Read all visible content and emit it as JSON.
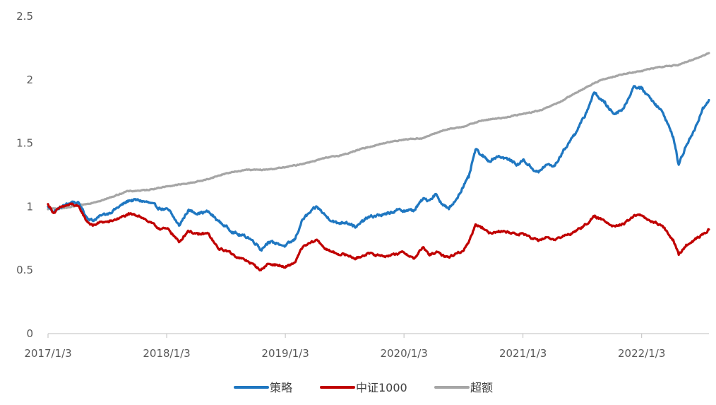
{
  "chart_data": {
    "type": "line",
    "x_ticks": [
      "2017/1/3",
      "2018/1/3",
      "2019/1/3",
      "2020/1/3",
      "2021/1/3",
      "2022/1/3"
    ],
    "y_ticks": [
      "0",
      "0.5",
      "1",
      "1.5",
      "2",
      "2.5"
    ],
    "ylim": [
      0,
      2.5
    ],
    "xlim": [
      "2017/1/3",
      "2022/7/29"
    ],
    "grid": false,
    "legend_position": "bottom",
    "series": [
      {
        "name": "策略",
        "color": "#1F77C1",
        "points": [
          [
            "2017/1/3",
            1.0
          ],
          [
            "2017/1/20",
            0.96
          ],
          [
            "2017/2/15",
            1.0
          ],
          [
            "2017/3/20",
            1.04
          ],
          [
            "2017/4/10",
            1.02
          ],
          [
            "2017/5/1",
            0.92
          ],
          [
            "2017/5/20",
            0.89
          ],
          [
            "2017/6/15",
            0.93
          ],
          [
            "2017/7/10",
            0.95
          ],
          [
            "2017/8/10",
            1.0
          ],
          [
            "2017/9/10",
            1.05
          ],
          [
            "2017/10/10",
            1.05
          ],
          [
            "2017/11/10",
            1.03
          ],
          [
            "2017/12/10",
            0.99
          ],
          [
            "2018/1/10",
            0.97
          ],
          [
            "2018/2/10",
            0.85
          ],
          [
            "2018/3/10",
            0.97
          ],
          [
            "2018/4/10",
            0.95
          ],
          [
            "2018/5/10",
            0.96
          ],
          [
            "2018/6/10",
            0.89
          ],
          [
            "2018/7/10",
            0.83
          ],
          [
            "2018/8/10",
            0.78
          ],
          [
            "2018/9/10",
            0.76
          ],
          [
            "2018/10/10",
            0.7
          ],
          [
            "2018/10/20",
            0.66
          ],
          [
            "2018/11/10",
            0.72
          ],
          [
            "2018/12/10",
            0.71
          ],
          [
            "2019/1/3",
            0.69
          ],
          [
            "2019/2/1",
            0.74
          ],
          [
            "2019/2/25",
            0.9
          ],
          [
            "2019/4/10",
            1.0
          ],
          [
            "2019/5/10",
            0.92
          ],
          [
            "2019/6/10",
            0.87
          ],
          [
            "2019/7/10",
            0.88
          ],
          [
            "2019/8/10",
            0.84
          ],
          [
            "2019/9/10",
            0.91
          ],
          [
            "2019/10/10",
            0.93
          ],
          [
            "2019/11/10",
            0.94
          ],
          [
            "2019/12/10",
            0.97
          ],
          [
            "2020/1/3",
            0.97
          ],
          [
            "2020/2/3",
            0.97
          ],
          [
            "2020/3/1",
            1.06
          ],
          [
            "2020/3/20",
            1.05
          ],
          [
            "2020/4/10",
            1.1
          ],
          [
            "2020/4/30",
            1.02
          ],
          [
            "2020/5/20",
            0.98
          ],
          [
            "2020/6/10",
            1.05
          ],
          [
            "2020/7/1",
            1.15
          ],
          [
            "2020/7/20",
            1.23
          ],
          [
            "2020/8/10",
            1.45
          ],
          [
            "2020/8/30",
            1.4
          ],
          [
            "2020/9/20",
            1.36
          ],
          [
            "2020/10/20",
            1.4
          ],
          [
            "2020/11/20",
            1.37
          ],
          [
            "2020/12/20",
            1.33
          ],
          [
            "2021/1/3",
            1.37
          ],
          [
            "2021/2/1",
            1.3
          ],
          [
            "2021/2/20",
            1.27
          ],
          [
            "2021/3/15",
            1.33
          ],
          [
            "2021/4/10",
            1.32
          ],
          [
            "2021/5/10",
            1.45
          ],
          [
            "2021/6/10",
            1.57
          ],
          [
            "2021/7/10",
            1.7
          ],
          [
            "2021/8/10",
            1.9
          ],
          [
            "2021/9/10",
            1.82
          ],
          [
            "2021/10/10",
            1.73
          ],
          [
            "2021/11/10",
            1.78
          ],
          [
            "2021/12/10",
            1.95
          ],
          [
            "2022/1/3",
            1.93
          ],
          [
            "2022/2/1",
            1.85
          ],
          [
            "2022/3/1",
            1.77
          ],
          [
            "2022/3/20",
            1.68
          ],
          [
            "2022/4/10",
            1.55
          ],
          [
            "2022/4/27",
            1.33
          ],
          [
            "2022/5/20",
            1.48
          ],
          [
            "2022/6/15",
            1.6
          ],
          [
            "2022/7/10",
            1.78
          ],
          [
            "2022/7/29",
            1.84
          ]
        ]
      },
      {
        "name": "中证1000",
        "color": "#C00000",
        "points": [
          [
            "2017/1/3",
            1.02
          ],
          [
            "2017/1/20",
            0.95
          ],
          [
            "2017/2/15",
            1.0
          ],
          [
            "2017/3/20",
            1.02
          ],
          [
            "2017/4/10",
            0.99
          ],
          [
            "2017/5/1",
            0.89
          ],
          [
            "2017/5/20",
            0.85
          ],
          [
            "2017/6/15",
            0.88
          ],
          [
            "2017/7/10",
            0.88
          ],
          [
            "2017/8/10",
            0.91
          ],
          [
            "2017/9/10",
            0.94
          ],
          [
            "2017/10/10",
            0.93
          ],
          [
            "2017/11/10",
            0.88
          ],
          [
            "2017/12/10",
            0.83
          ],
          [
            "2018/1/10",
            0.82
          ],
          [
            "2018/2/10",
            0.72
          ],
          [
            "2018/3/10",
            0.81
          ],
          [
            "2018/4/10",
            0.78
          ],
          [
            "2018/5/10",
            0.79
          ],
          [
            "2018/6/10",
            0.67
          ],
          [
            "2018/7/10",
            0.65
          ],
          [
            "2018/8/10",
            0.6
          ],
          [
            "2018/9/10",
            0.57
          ],
          [
            "2018/10/10",
            0.52
          ],
          [
            "2018/10/20",
            0.5
          ],
          [
            "2018/11/10",
            0.55
          ],
          [
            "2018/12/10",
            0.54
          ],
          [
            "2019/1/3",
            0.52
          ],
          [
            "2019/2/1",
            0.56
          ],
          [
            "2019/2/25",
            0.68
          ],
          [
            "2019/4/10",
            0.74
          ],
          [
            "2019/5/10",
            0.66
          ],
          [
            "2019/6/10",
            0.63
          ],
          [
            "2019/7/10",
            0.62
          ],
          [
            "2019/8/10",
            0.59
          ],
          [
            "2019/9/10",
            0.63
          ],
          [
            "2019/10/10",
            0.62
          ],
          [
            "2019/11/10",
            0.61
          ],
          [
            "2019/12/10",
            0.63
          ],
          [
            "2020/1/3",
            0.64
          ],
          [
            "2020/2/3",
            0.59
          ],
          [
            "2020/3/1",
            0.68
          ],
          [
            "2020/3/20",
            0.62
          ],
          [
            "2020/4/10",
            0.64
          ],
          [
            "2020/4/30",
            0.62
          ],
          [
            "2020/5/20",
            0.6
          ],
          [
            "2020/6/10",
            0.63
          ],
          [
            "2020/7/1",
            0.65
          ],
          [
            "2020/7/20",
            0.72
          ],
          [
            "2020/8/10",
            0.86
          ],
          [
            "2020/8/30",
            0.84
          ],
          [
            "2020/9/20",
            0.79
          ],
          [
            "2020/10/20",
            0.81
          ],
          [
            "2020/11/20",
            0.8
          ],
          [
            "2020/12/20",
            0.78
          ],
          [
            "2021/1/3",
            0.79
          ],
          [
            "2021/2/1",
            0.75
          ],
          [
            "2021/2/20",
            0.73
          ],
          [
            "2021/3/15",
            0.76
          ],
          [
            "2021/4/10",
            0.74
          ],
          [
            "2021/5/10",
            0.77
          ],
          [
            "2021/6/10",
            0.8
          ],
          [
            "2021/7/10",
            0.85
          ],
          [
            "2021/8/10",
            0.92
          ],
          [
            "2021/9/10",
            0.89
          ],
          [
            "2021/10/10",
            0.85
          ],
          [
            "2021/11/10",
            0.86
          ],
          [
            "2021/12/10",
            0.93
          ],
          [
            "2022/1/3",
            0.93
          ],
          [
            "2022/2/1",
            0.88
          ],
          [
            "2022/3/1",
            0.86
          ],
          [
            "2022/3/20",
            0.81
          ],
          [
            "2022/4/10",
            0.74
          ],
          [
            "2022/4/27",
            0.62
          ],
          [
            "2022/5/20",
            0.7
          ],
          [
            "2022/6/15",
            0.74
          ],
          [
            "2022/7/10",
            0.78
          ],
          [
            "2022/7/29",
            0.82
          ]
        ]
      },
      {
        "name": "超额",
        "color": "#A6A6A6",
        "points": [
          [
            "2017/1/3",
            0.98
          ],
          [
            "2017/3/1",
            0.99
          ],
          [
            "2017/5/1",
            1.02
          ],
          [
            "2017/7/1",
            1.06
          ],
          [
            "2017/9/1",
            1.12
          ],
          [
            "2017/11/1",
            1.13
          ],
          [
            "2018/1/3",
            1.16
          ],
          [
            "2018/3/1",
            1.18
          ],
          [
            "2018/5/1",
            1.21
          ],
          [
            "2018/7/1",
            1.26
          ],
          [
            "2018/9/1",
            1.29
          ],
          [
            "2018/11/1",
            1.29
          ],
          [
            "2019/1/3",
            1.31
          ],
          [
            "2019/3/1",
            1.34
          ],
          [
            "2019/5/1",
            1.38
          ],
          [
            "2019/7/1",
            1.41
          ],
          [
            "2019/9/1",
            1.46
          ],
          [
            "2019/11/1",
            1.5
          ],
          [
            "2020/1/3",
            1.53
          ],
          [
            "2020/3/1",
            1.54
          ],
          [
            "2020/5/1",
            1.6
          ],
          [
            "2020/7/1",
            1.63
          ],
          [
            "2020/9/1",
            1.68
          ],
          [
            "2020/11/1",
            1.7
          ],
          [
            "2021/1/3",
            1.73
          ],
          [
            "2021/3/1",
            1.76
          ],
          [
            "2021/5/1",
            1.83
          ],
          [
            "2021/7/1",
            1.92
          ],
          [
            "2021/9/1",
            2.0
          ],
          [
            "2021/11/1",
            2.04
          ],
          [
            "2022/1/3",
            2.07
          ],
          [
            "2022/3/1",
            2.1
          ],
          [
            "2022/5/1",
            2.12
          ],
          [
            "2022/7/1",
            2.18
          ],
          [
            "2022/7/29",
            2.21
          ]
        ]
      }
    ]
  }
}
